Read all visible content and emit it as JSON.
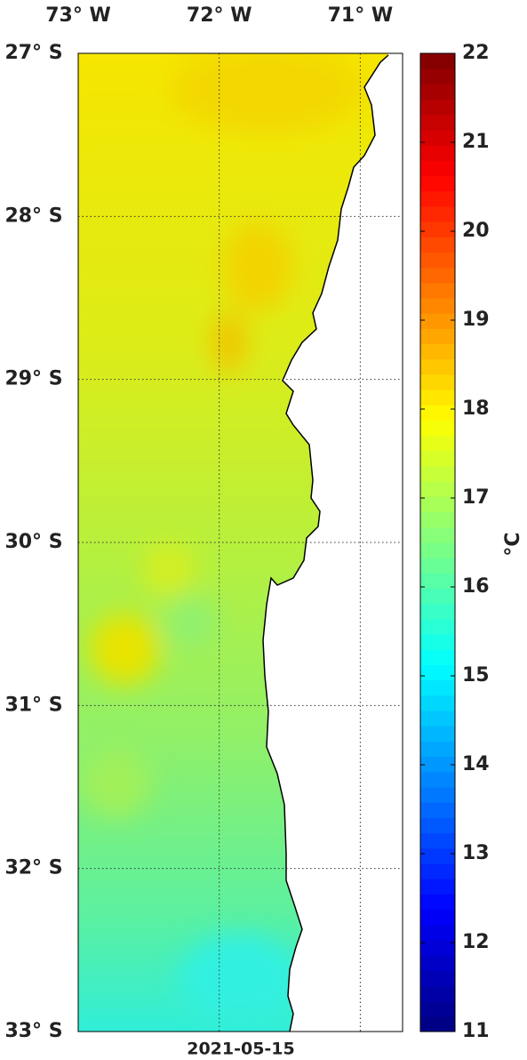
{
  "map": {
    "lon_lim": [
      -73,
      -70.7
    ],
    "lat_lim": [
      -33,
      -27
    ],
    "lon_ticks": [
      {
        "value": -73,
        "label": "73° W"
      },
      {
        "value": -72,
        "label": "72° W"
      },
      {
        "value": -71,
        "label": "71° W"
      }
    ],
    "lat_ticks": [
      {
        "value": -27,
        "label": "27° S"
      },
      {
        "value": -28,
        "label": "28° S"
      },
      {
        "value": -29,
        "label": "29° S"
      },
      {
        "value": -30,
        "label": "30° S"
      },
      {
        "value": -31,
        "label": "31° S"
      },
      {
        "value": -32,
        "label": "32° S"
      },
      {
        "value": -33,
        "label": "33° S"
      }
    ],
    "date": "2021-05-15"
  },
  "colorbar": {
    "lim": [
      11,
      22
    ],
    "ticks": [
      11,
      12,
      13,
      14,
      15,
      16,
      17,
      18,
      19,
      20,
      21,
      22
    ],
    "label": "°C"
  }
}
